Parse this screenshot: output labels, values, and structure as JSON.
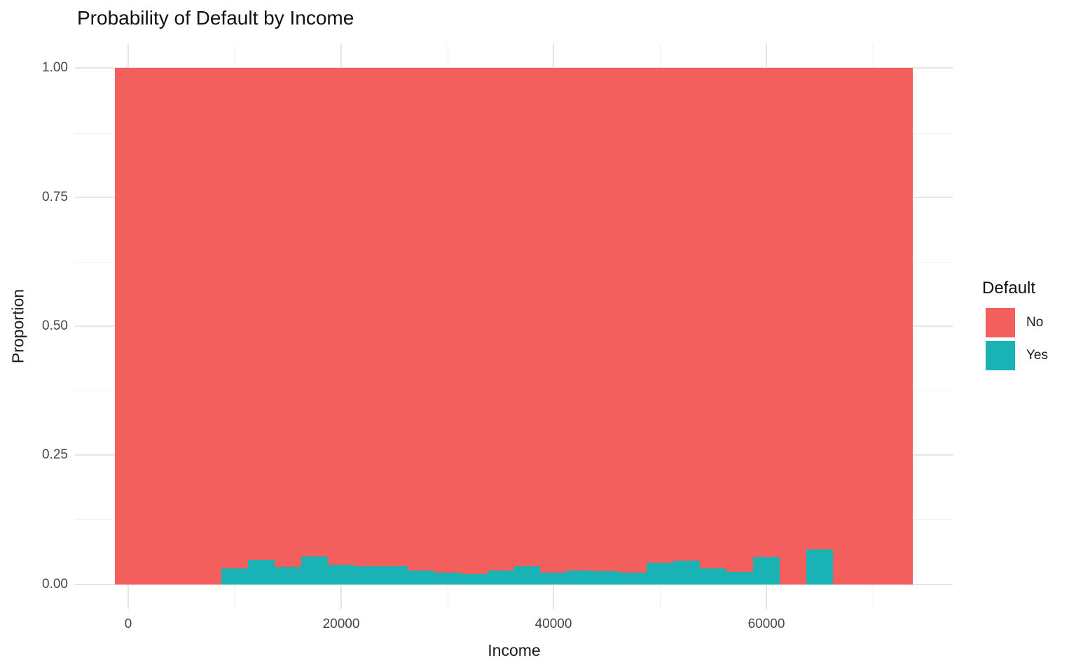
{
  "title": "Probability of Default by Income",
  "chart_data": {
    "type": "bar",
    "subtype": "stacked-filled-histogram",
    "title": "Probability of Default by Income",
    "xlabel": "Income",
    "ylabel": "Proportion",
    "bin_width": 2500,
    "bin_centers": [
      0,
      2500,
      5000,
      7500,
      10000,
      12500,
      15000,
      17500,
      20000,
      22500,
      25000,
      27500,
      30000,
      32500,
      35000,
      37500,
      40000,
      42500,
      45000,
      47500,
      50000,
      52500,
      55000,
      57500,
      60000,
      62500,
      65000,
      67500,
      70000,
      72500
    ],
    "series": [
      {
        "name": "No",
        "color": "#F25F5C",
        "values": [
          1,
          1,
          1,
          1,
          0.97,
          0.953,
          0.966,
          0.946,
          0.963,
          0.965,
          0.965,
          0.973,
          0.977,
          0.98,
          0.973,
          0.965,
          0.977,
          0.973,
          0.975,
          0.977,
          0.959,
          0.954,
          0.97,
          0.976,
          0.948,
          1,
          0.933,
          1,
          1,
          1
        ]
      },
      {
        "name": "Yes",
        "color": "#1AB3B5",
        "values": [
          0,
          0,
          0,
          0,
          0.03,
          0.047,
          0.034,
          0.054,
          0.037,
          0.035,
          0.035,
          0.027,
          0.023,
          0.02,
          0.027,
          0.035,
          0.023,
          0.027,
          0.025,
          0.023,
          0.041,
          0.046,
          0.03,
          0.024,
          0.052,
          0,
          0.067,
          0,
          0,
          0
        ]
      }
    ],
    "x_axis": {
      "label": "Income",
      "range": [
        -5000,
        77500
      ],
      "tick_values": [
        0,
        20000,
        40000,
        60000
      ],
      "tick_labels": [
        "0",
        "20000",
        "40000",
        "60000"
      ],
      "minor_ticks": [
        10000,
        30000,
        50000,
        70000
      ]
    },
    "y_axis": {
      "label": "Proportion",
      "range": [
        -0.048,
        1.048
      ],
      "tick_values": [
        0,
        0.25,
        0.5,
        0.75,
        1
      ],
      "tick_labels": [
        "0.00",
        "0.25",
        "0.50",
        "0.75",
        "1.00"
      ],
      "minor_ticks": [
        0.125,
        0.375,
        0.625,
        0.875
      ]
    },
    "grid": true,
    "legend_position": "right"
  },
  "legend": {
    "title": "Default",
    "entries": [
      {
        "label": "No",
        "color": "#F25F5C"
      },
      {
        "label": "Yes",
        "color": "#1AB3B5"
      }
    ]
  },
  "colors": {
    "background": "#FFFFFF",
    "grid_major": "#E5E5E5",
    "grid_minor": "#EFEFEF",
    "tick_text": "#454545",
    "axis_title_text": "#1A1A1A",
    "title_text": "#111111"
  }
}
